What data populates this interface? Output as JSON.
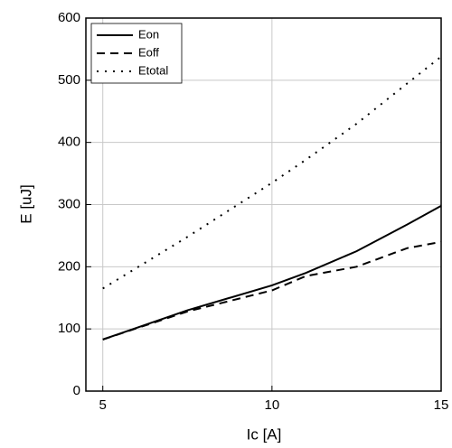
{
  "chart_data": {
    "type": "line",
    "xlabel": "Ic [A]",
    "ylabel": "E [uJ]",
    "x": [
      5,
      7.5,
      10,
      11,
      12.5,
      14,
      15
    ],
    "series": [
      {
        "name": "Eon",
        "color": "#000000",
        "style": "solid",
        "values": [
          83,
          130,
          170,
          190,
          225,
          268,
          298
        ]
      },
      {
        "name": "Eoff",
        "color": "#000000",
        "style": "dashed",
        "values": [
          83,
          128,
          162,
          185,
          200,
          230,
          240
        ]
      },
      {
        "name": "Etotal",
        "color": "#000000",
        "style": "dotted",
        "values": [
          165,
          248,
          335,
          372,
          430,
          495,
          538
        ]
      }
    ],
    "xlim": [
      4.5,
      15
    ],
    "xticks": [
      5,
      10,
      15
    ],
    "ylim": [
      0,
      600
    ],
    "yticks": [
      0,
      100,
      200,
      300,
      400,
      500,
      600
    ],
    "grid": true,
    "legend": "top-left"
  }
}
